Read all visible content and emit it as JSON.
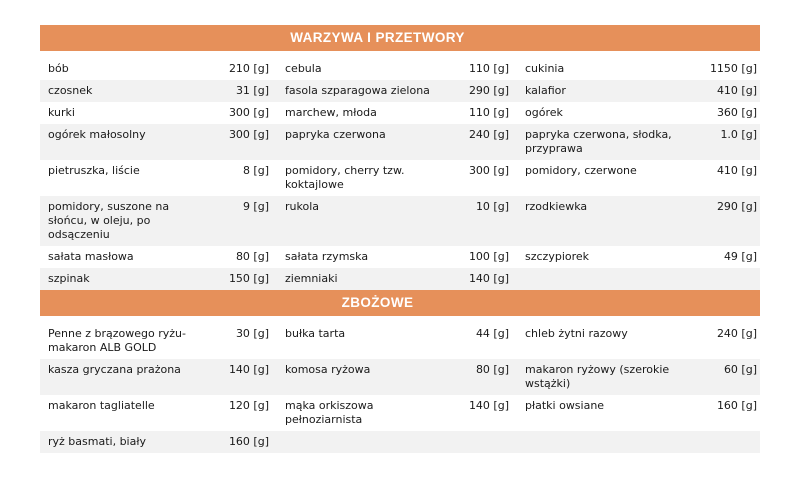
{
  "page": {
    "background": "#ffffff",
    "text_color": "#1a1a1a"
  },
  "colors": {
    "section_header_bg": "#E6905A",
    "section_header_text": "#ffffff",
    "row_stripe": "#F2F2F2"
  },
  "unit_suffix": "[g]",
  "sections": [
    {
      "title": "WARZYWA I PRZETWORY",
      "rows": [
        [
          {
            "name": "bób",
            "qty": "210 [g]"
          },
          {
            "name": "cebula",
            "qty": "110 [g]"
          },
          {
            "name": "cukinia",
            "qty": "1150 [g]"
          }
        ],
        [
          {
            "name": "czosnek",
            "qty": "31 [g]"
          },
          {
            "name": "fasola szparagowa zielona",
            "qty": "290 [g]"
          },
          {
            "name": "kalafior",
            "qty": "410 [g]"
          }
        ],
        [
          {
            "name": "kurki",
            "qty": "300 [g]"
          },
          {
            "name": "marchew, młoda",
            "qty": "110 [g]"
          },
          {
            "name": "ogórek",
            "qty": "360 [g]"
          }
        ],
        [
          {
            "name": "ogórek małosolny",
            "qty": "300 [g]"
          },
          {
            "name": "papryka czerwona",
            "qty": "240 [g]"
          },
          {
            "name": "papryka czerwona, słodka, przyprawa",
            "qty": "1.0 [g]"
          }
        ],
        [
          {
            "name": "pietruszka, liście",
            "qty": "8 [g]"
          },
          {
            "name": "pomidory, cherry tzw. koktajlowe",
            "qty": "300 [g]"
          },
          {
            "name": "pomidory, czerwone",
            "qty": "410 [g]"
          }
        ],
        [
          {
            "name": "pomidory, suszone na słońcu, w oleju, po odsączeniu",
            "qty": "9 [g]"
          },
          {
            "name": "rukola",
            "qty": "10 [g]"
          },
          {
            "name": "rzodkiewka",
            "qty": "290 [g]"
          }
        ],
        [
          {
            "name": "sałata masłowa",
            "qty": "80 [g]"
          },
          {
            "name": "sałata rzymska",
            "qty": "100 [g]"
          },
          {
            "name": "szczypiorek",
            "qty": "49 [g]"
          }
        ],
        [
          {
            "name": "szpinak",
            "qty": "150 [g]"
          },
          {
            "name": "ziemniaki",
            "qty": "140 [g]"
          },
          {
            "name": "",
            "qty": ""
          }
        ]
      ]
    },
    {
      "title": "ZBOŻOWE",
      "rows": [
        [
          {
            "name": "Penne z brązowego ryżu-makaron ALB GOLD",
            "qty": "30 [g]"
          },
          {
            "name": "bułka tarta",
            "qty": "44 [g]"
          },
          {
            "name": "chleb żytni razowy",
            "qty": "240 [g]"
          }
        ],
        [
          {
            "name": "kasza gryczana prażona",
            "qty": "140 [g]"
          },
          {
            "name": "komosa ryżowa",
            "qty": "80 [g]"
          },
          {
            "name": "makaron ryżowy (szerokie wstążki)",
            "qty": "60 [g]"
          }
        ],
        [
          {
            "name": "makaron tagliatelle",
            "qty": "120 [g]"
          },
          {
            "name": "mąka orkiszowa pełnoziarnista",
            "qty": "140 [g]"
          },
          {
            "name": "płatki owsiane",
            "qty": "160 [g]"
          }
        ],
        [
          {
            "name": "ryż basmati, biały",
            "qty": "160 [g]"
          },
          {
            "name": "",
            "qty": ""
          },
          {
            "name": "",
            "qty": ""
          }
        ]
      ]
    }
  ]
}
